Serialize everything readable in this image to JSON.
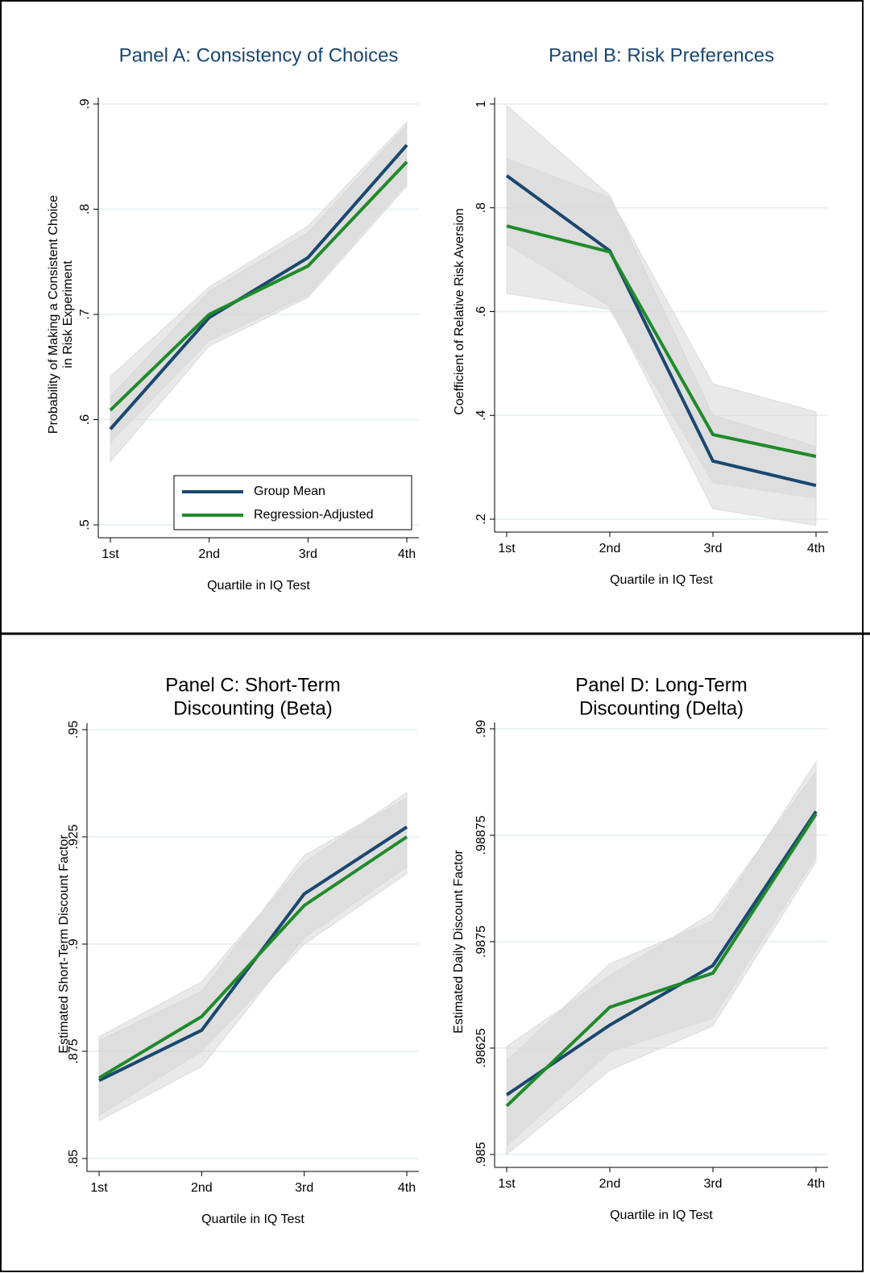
{
  "chart_data": [
    {
      "type": "line",
      "title": [
        "Panel A: Consistency of Choices"
      ],
      "title_color": "#1a476f",
      "xlabel": "Quartile in IQ Test",
      "ylabel": [
        "Probability of Making a Consistent Choice",
        "in Risk Experiment"
      ],
      "categories": [
        "1st",
        "2nd",
        "3rd",
        "4th"
      ],
      "series": [
        {
          "name": "Group Mean",
          "color": "#1a476f",
          "values": [
            0.591,
            0.697,
            0.754,
            0.861
          ],
          "lower": [
            0.56,
            0.67,
            0.716,
            0.822
          ],
          "upper": [
            0.622,
            0.722,
            0.778,
            0.88
          ]
        },
        {
          "name": "Regression-Adjusted",
          "color": "#1f8a2a",
          "values": [
            0.609,
            0.7,
            0.746,
            0.845
          ],
          "lower": [
            0.578,
            0.675,
            0.718,
            0.825
          ],
          "upper": [
            0.641,
            0.726,
            0.784,
            0.883
          ]
        }
      ],
      "ylim": [
        0.5,
        0.9
      ],
      "yticks": [
        {
          "value": 0.5,
          "label": ".5"
        },
        {
          "value": 0.6,
          "label": ".6"
        },
        {
          "value": 0.7,
          "label": ".7"
        },
        {
          "value": 0.8,
          "label": ".8"
        },
        {
          "value": 0.9,
          "label": ".9"
        }
      ],
      "grid": true,
      "legend": "bottom-right"
    },
    {
      "type": "line",
      "title": [
        "Panel B: Risk Preferences"
      ],
      "title_color": "#1a476f",
      "xlabel": "Quartile in IQ Test",
      "ylabel": [
        "Coefficient of Relative Risk Aversion"
      ],
      "categories": [
        "1st",
        "2nd",
        "3rd",
        "4th"
      ],
      "series": [
        {
          "color": "#1a476f",
          "values": [
            0.862,
            0.717,
            0.312,
            0.265
          ],
          "lower": [
            0.73,
            0.61,
            0.22,
            0.188
          ],
          "upper": [
            0.997,
            0.824,
            0.4,
            0.34
          ]
        },
        {
          "color": "#1f8a2a",
          "values": [
            0.765,
            0.715,
            0.363,
            0.321
          ],
          "lower": [
            0.635,
            0.604,
            0.27,
            0.24
          ],
          "upper": [
            0.895,
            0.82,
            0.461,
            0.407
          ]
        }
      ],
      "ylim": [
        0.2,
        1
      ],
      "yticks": [
        {
          "value": 0.2,
          "label": ".2"
        },
        {
          "value": 0.4,
          "label": ".4"
        },
        {
          "value": 0.6,
          "label": ".6"
        },
        {
          "value": 0.8,
          "label": ".8"
        },
        1
      ],
      "grid": true
    },
    {
      "type": "line",
      "title": [
        "Panel C: Short-Term",
        "Discounting (Beta)"
      ],
      "title_color": "#000000",
      "xlabel": "Quartile in IQ Test",
      "ylabel": [
        "Estimated Short-Term Discount Factor"
      ],
      "categories": [
        "1st",
        "2nd",
        "3rd",
        "4th"
      ],
      "series": [
        {
          "color": "#1a476f",
          "values": [
            0.8682,
            0.8799,
            0.9117,
            0.9273
          ],
          "lower": [
            0.8588,
            0.8714,
            0.9015,
            0.918
          ],
          "upper": [
            0.8775,
            0.889,
            0.9207,
            0.934
          ]
        },
        {
          "color": "#1f8a2a",
          "values": [
            0.8688,
            0.8831,
            0.909,
            0.925
          ],
          "lower": [
            0.86,
            0.875,
            0.9,
            0.9164
          ],
          "upper": [
            0.8784,
            0.8912,
            0.919,
            0.9353
          ]
        }
      ],
      "ylim": [
        0.85,
        0.95
      ],
      "yticks": [
        {
          "value": 0.85,
          "label": ".85"
        },
        {
          "value": 0.875,
          "label": ".875"
        },
        {
          "value": 0.9,
          "label": ".9"
        },
        {
          "value": 0.925,
          "label": ".925"
        },
        {
          "value": 0.95,
          "label": ".95"
        }
      ],
      "grid": true
    },
    {
      "type": "line",
      "title": [
        "Panel D: Long-Term",
        "Discounting (Delta)"
      ],
      "title_color": "#000000",
      "xlabel": "Quartile in IQ Test",
      "ylabel": [
        "Estimated Daily Discount Factor"
      ],
      "categories": [
        "1st",
        "2nd",
        "3rd",
        "4th"
      ],
      "series": [
        {
          "color": "#1a476f",
          "values": [
            0.9857,
            0.98652,
            0.98722,
            0.98903
          ],
          "lower": [
            0.985,
            0.98599,
            0.98651,
            0.98844
          ],
          "upper": [
            0.98627,
            0.9871,
            0.98784,
            0.9895
          ]
        },
        {
          "color": "#1f8a2a",
          "values": [
            0.98557,
            0.98673,
            0.98713,
            0.989
          ],
          "lower": [
            0.9851,
            0.9862,
            0.9866,
            0.9885
          ],
          "upper": [
            0.9861,
            0.98724,
            0.98775,
            0.98961
          ]
        }
      ],
      "ylim": [
        0.985,
        0.99
      ],
      "yticks": [
        {
          "value": 0.985,
          "label": ".985"
        },
        {
          "value": 0.98625,
          "label": ".98625"
        },
        {
          "value": 0.9875,
          "label": ".9875"
        },
        {
          "value": 0.98875,
          "label": ".98875"
        },
        {
          "value": 0.99,
          "label": ".99"
        }
      ],
      "grid": true
    }
  ]
}
